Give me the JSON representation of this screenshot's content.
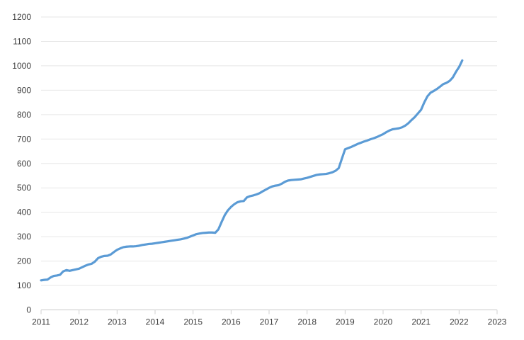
{
  "page": {
    "background_color": "#ffffff"
  },
  "chart_data": {
    "type": "line",
    "title": "",
    "subtitle": "",
    "xlabel": "",
    "ylabel": "",
    "legend": "none",
    "grid": "horizontal",
    "xlim": [
      2011,
      2023
    ],
    "ylim": [
      0,
      1200
    ],
    "x_ticks": [
      2011,
      2012,
      2013,
      2014,
      2015,
      2016,
      2017,
      2018,
      2019,
      2020,
      2021,
      2022,
      2023
    ],
    "y_ticks": [
      0,
      100,
      200,
      300,
      400,
      500,
      600,
      700,
      800,
      900,
      1000,
      1100,
      1200
    ],
    "colors": {
      "line": "#5b9bd5",
      "gridline": "#e7e7e7",
      "baseline": "#c9c9c9",
      "tick_mark": "#d0d0d0",
      "tick_label": "#3f3f3f"
    },
    "series": [
      {
        "name": "value",
        "color": "#5b9bd5",
        "x_start": 2011,
        "x_step": 0.0833333,
        "y": [
          121,
          123,
          124,
          133,
          139,
          141,
          144,
          158,
          163,
          160,
          163,
          166,
          169,
          175,
          181,
          186,
          189,
          198,
          212,
          218,
          221,
          222,
          227,
          237,
          246,
          252,
          257,
          259,
          260,
          260,
          261,
          263,
          266,
          268,
          270,
          271,
          273,
          275,
          277,
          279,
          281,
          283,
          285,
          287,
          289,
          292,
          295,
          300,
          305,
          310,
          313,
          315,
          316,
          317,
          317,
          316,
          330,
          360,
          388,
          408,
          422,
          433,
          441,
          445,
          446,
          461,
          466,
          469,
          473,
          478,
          486,
          493,
          500,
          506,
          509,
          511,
          517,
          525,
          530,
          532,
          533,
          534,
          535,
          538,
          541,
          545,
          549,
          553,
          555,
          556,
          557,
          560,
          564,
          570,
          581,
          620,
          658,
          663,
          668,
          674,
          680,
          685,
          690,
          694,
          699,
          703,
          708,
          714,
          720,
          728,
          735,
          740,
          742,
          744,
          748,
          755,
          765,
          778,
          790,
          805,
          820,
          850,
          875,
          890,
          897,
          905,
          915,
          925,
          930,
          938,
          952,
          975,
          995,
          1022
        ]
      }
    ]
  }
}
